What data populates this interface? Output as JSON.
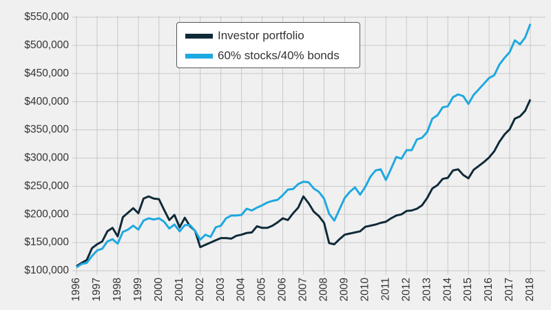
{
  "chart_data": {
    "type": "line",
    "title": "",
    "xlabel": "",
    "ylabel": "",
    "xlim": [
      1996,
      2018.25
    ],
    "ylim": [
      100000,
      550000
    ],
    "grid": true,
    "legend_position": "top-center",
    "x_tick_labels": [
      "1996",
      "1997",
      "1998",
      "1999",
      "2000",
      "2001",
      "2002",
      "2003",
      "2004",
      "2005",
      "2006",
      "2007",
      "2008",
      "2009",
      "2010",
      "2011",
      "2012",
      "2013",
      "2014",
      "2015",
      "2016",
      "2017",
      "2018"
    ],
    "y_ticks": [
      100000,
      150000,
      200000,
      250000,
      300000,
      350000,
      400000,
      450000,
      500000,
      550000
    ],
    "y_tick_labels": [
      "$100,000",
      "$150,000",
      "$200,000",
      "$250,000",
      "$300,000",
      "$350,000",
      "$400,000",
      "$450,000",
      "$500,000",
      "$550,000"
    ],
    "series": [
      {
        "name": "Investor portfolio",
        "color": "#0f2a38",
        "x": [
          1996,
          1996.25,
          1996.5,
          1996.75,
          1997,
          1997.25,
          1997.5,
          1997.75,
          1998,
          1998.25,
          1998.5,
          1998.75,
          1999,
          1999.25,
          1999.5,
          1999.75,
          2000,
          2000.25,
          2000.5,
          2000.75,
          2001,
          2001.25,
          2001.5,
          2001.75,
          2002,
          2002.25,
          2002.5,
          2002.75,
          2003,
          2003.25,
          2003.5,
          2003.75,
          2004,
          2004.25,
          2004.5,
          2004.75,
          2005,
          2005.25,
          2005.5,
          2005.75,
          2006,
          2006.25,
          2006.5,
          2006.75,
          2007,
          2007.25,
          2007.5,
          2007.75,
          2008,
          2008.25,
          2008.5,
          2008.75,
          2009,
          2009.25,
          2009.5,
          2009.75,
          2010,
          2010.25,
          2010.5,
          2010.75,
          2011,
          2011.25,
          2011.5,
          2011.75,
          2012,
          2012.25,
          2012.5,
          2012.75,
          2013,
          2013.25,
          2013.5,
          2013.75,
          2014,
          2014.25,
          2014.5,
          2014.75,
          2015,
          2015.25,
          2015.5,
          2015.75,
          2016,
          2016.25,
          2016.5,
          2016.75,
          2017,
          2017.25,
          2017.5,
          2017.75,
          2018
        ],
        "y": [
          108000,
          114000,
          119000,
          140000,
          147000,
          152000,
          170000,
          176000,
          161000,
          195000,
          203000,
          211000,
          202000,
          228000,
          232000,
          228000,
          227000,
          208000,
          190000,
          199000,
          177000,
          194000,
          179000,
          171000,
          142000,
          146000,
          150000,
          154000,
          158000,
          158000,
          157000,
          162000,
          164000,
          167000,
          168000,
          179000,
          176000,
          176000,
          180000,
          186000,
          193000,
          190000,
          202000,
          212000,
          232000,
          220000,
          205000,
          197000,
          185000,
          149000,
          147000,
          156000,
          164000,
          166000,
          168000,
          170000,
          178000,
          180000,
          182000,
          185000,
          187000,
          193000,
          198000,
          200000,
          206000,
          207000,
          210000,
          216000,
          229000,
          246000,
          252000,
          263000,
          265000,
          278000,
          280000,
          270000,
          264000,
          279000,
          286000,
          293000,
          301000,
          312000,
          329000,
          342000,
          351000,
          370000,
          374000,
          384000,
          404000
        ]
      },
      {
        "name": "60% stocks/40% bonds",
        "color": "#1ea8e0",
        "x": [
          1996,
          1996.25,
          1996.5,
          1996.75,
          1997,
          1997.25,
          1997.5,
          1997.75,
          1998,
          1998.25,
          1998.5,
          1998.75,
          1999,
          1999.25,
          1999.5,
          1999.75,
          2000,
          2000.25,
          2000.5,
          2000.75,
          2001,
          2001.25,
          2001.5,
          2001.75,
          2002,
          2002.25,
          2002.5,
          2002.75,
          2003,
          2003.25,
          2003.5,
          2003.75,
          2004,
          2004.25,
          2004.5,
          2004.75,
          2005,
          2005.25,
          2005.5,
          2005.75,
          2006,
          2006.25,
          2006.5,
          2006.75,
          2007,
          2007.25,
          2007.5,
          2007.75,
          2008,
          2008.25,
          2008.5,
          2008.75,
          2009,
          2009.25,
          2009.5,
          2009.75,
          2010,
          2010.25,
          2010.5,
          2010.75,
          2011,
          2011.25,
          2011.5,
          2011.75,
          2012,
          2012.25,
          2012.5,
          2012.75,
          2013,
          2013.25,
          2013.5,
          2013.75,
          2014,
          2014.25,
          2014.5,
          2014.75,
          2015,
          2015.25,
          2015.5,
          2015.75,
          2016,
          2016.25,
          2016.5,
          2016.75,
          2017,
          2017.25,
          2017.5,
          2017.75,
          2018
        ],
        "y": [
          106000,
          112000,
          114000,
          126000,
          136000,
          139000,
          152000,
          156000,
          148000,
          169000,
          173000,
          180000,
          173000,
          189000,
          193000,
          191000,
          193000,
          187000,
          175000,
          182000,
          170000,
          181000,
          181000,
          171000,
          155000,
          164000,
          160000,
          177000,
          180000,
          193000,
          198000,
          198000,
          199000,
          210000,
          207000,
          212000,
          216000,
          221000,
          224000,
          226000,
          234000,
          244000,
          245000,
          254000,
          258000,
          257000,
          246000,
          240000,
          228000,
          201000,
          189000,
          209000,
          229000,
          240000,
          248000,
          235000,
          249000,
          267000,
          278000,
          280000,
          261000,
          281000,
          302000,
          299000,
          314000,
          314000,
          333000,
          336000,
          346000,
          370000,
          376000,
          390000,
          392000,
          408000,
          413000,
          410000,
          396000,
          412000,
          422000,
          432000,
          442000,
          447000,
          466000,
          478000,
          488000,
          509000,
          502000,
          514000,
          538000
        ]
      }
    ]
  },
  "legend": {
    "items": [
      {
        "label": "Investor portfolio",
        "color": "#0f2a38"
      },
      {
        "label": "60% stocks/40% bonds",
        "color": "#1ea8e0"
      }
    ]
  }
}
